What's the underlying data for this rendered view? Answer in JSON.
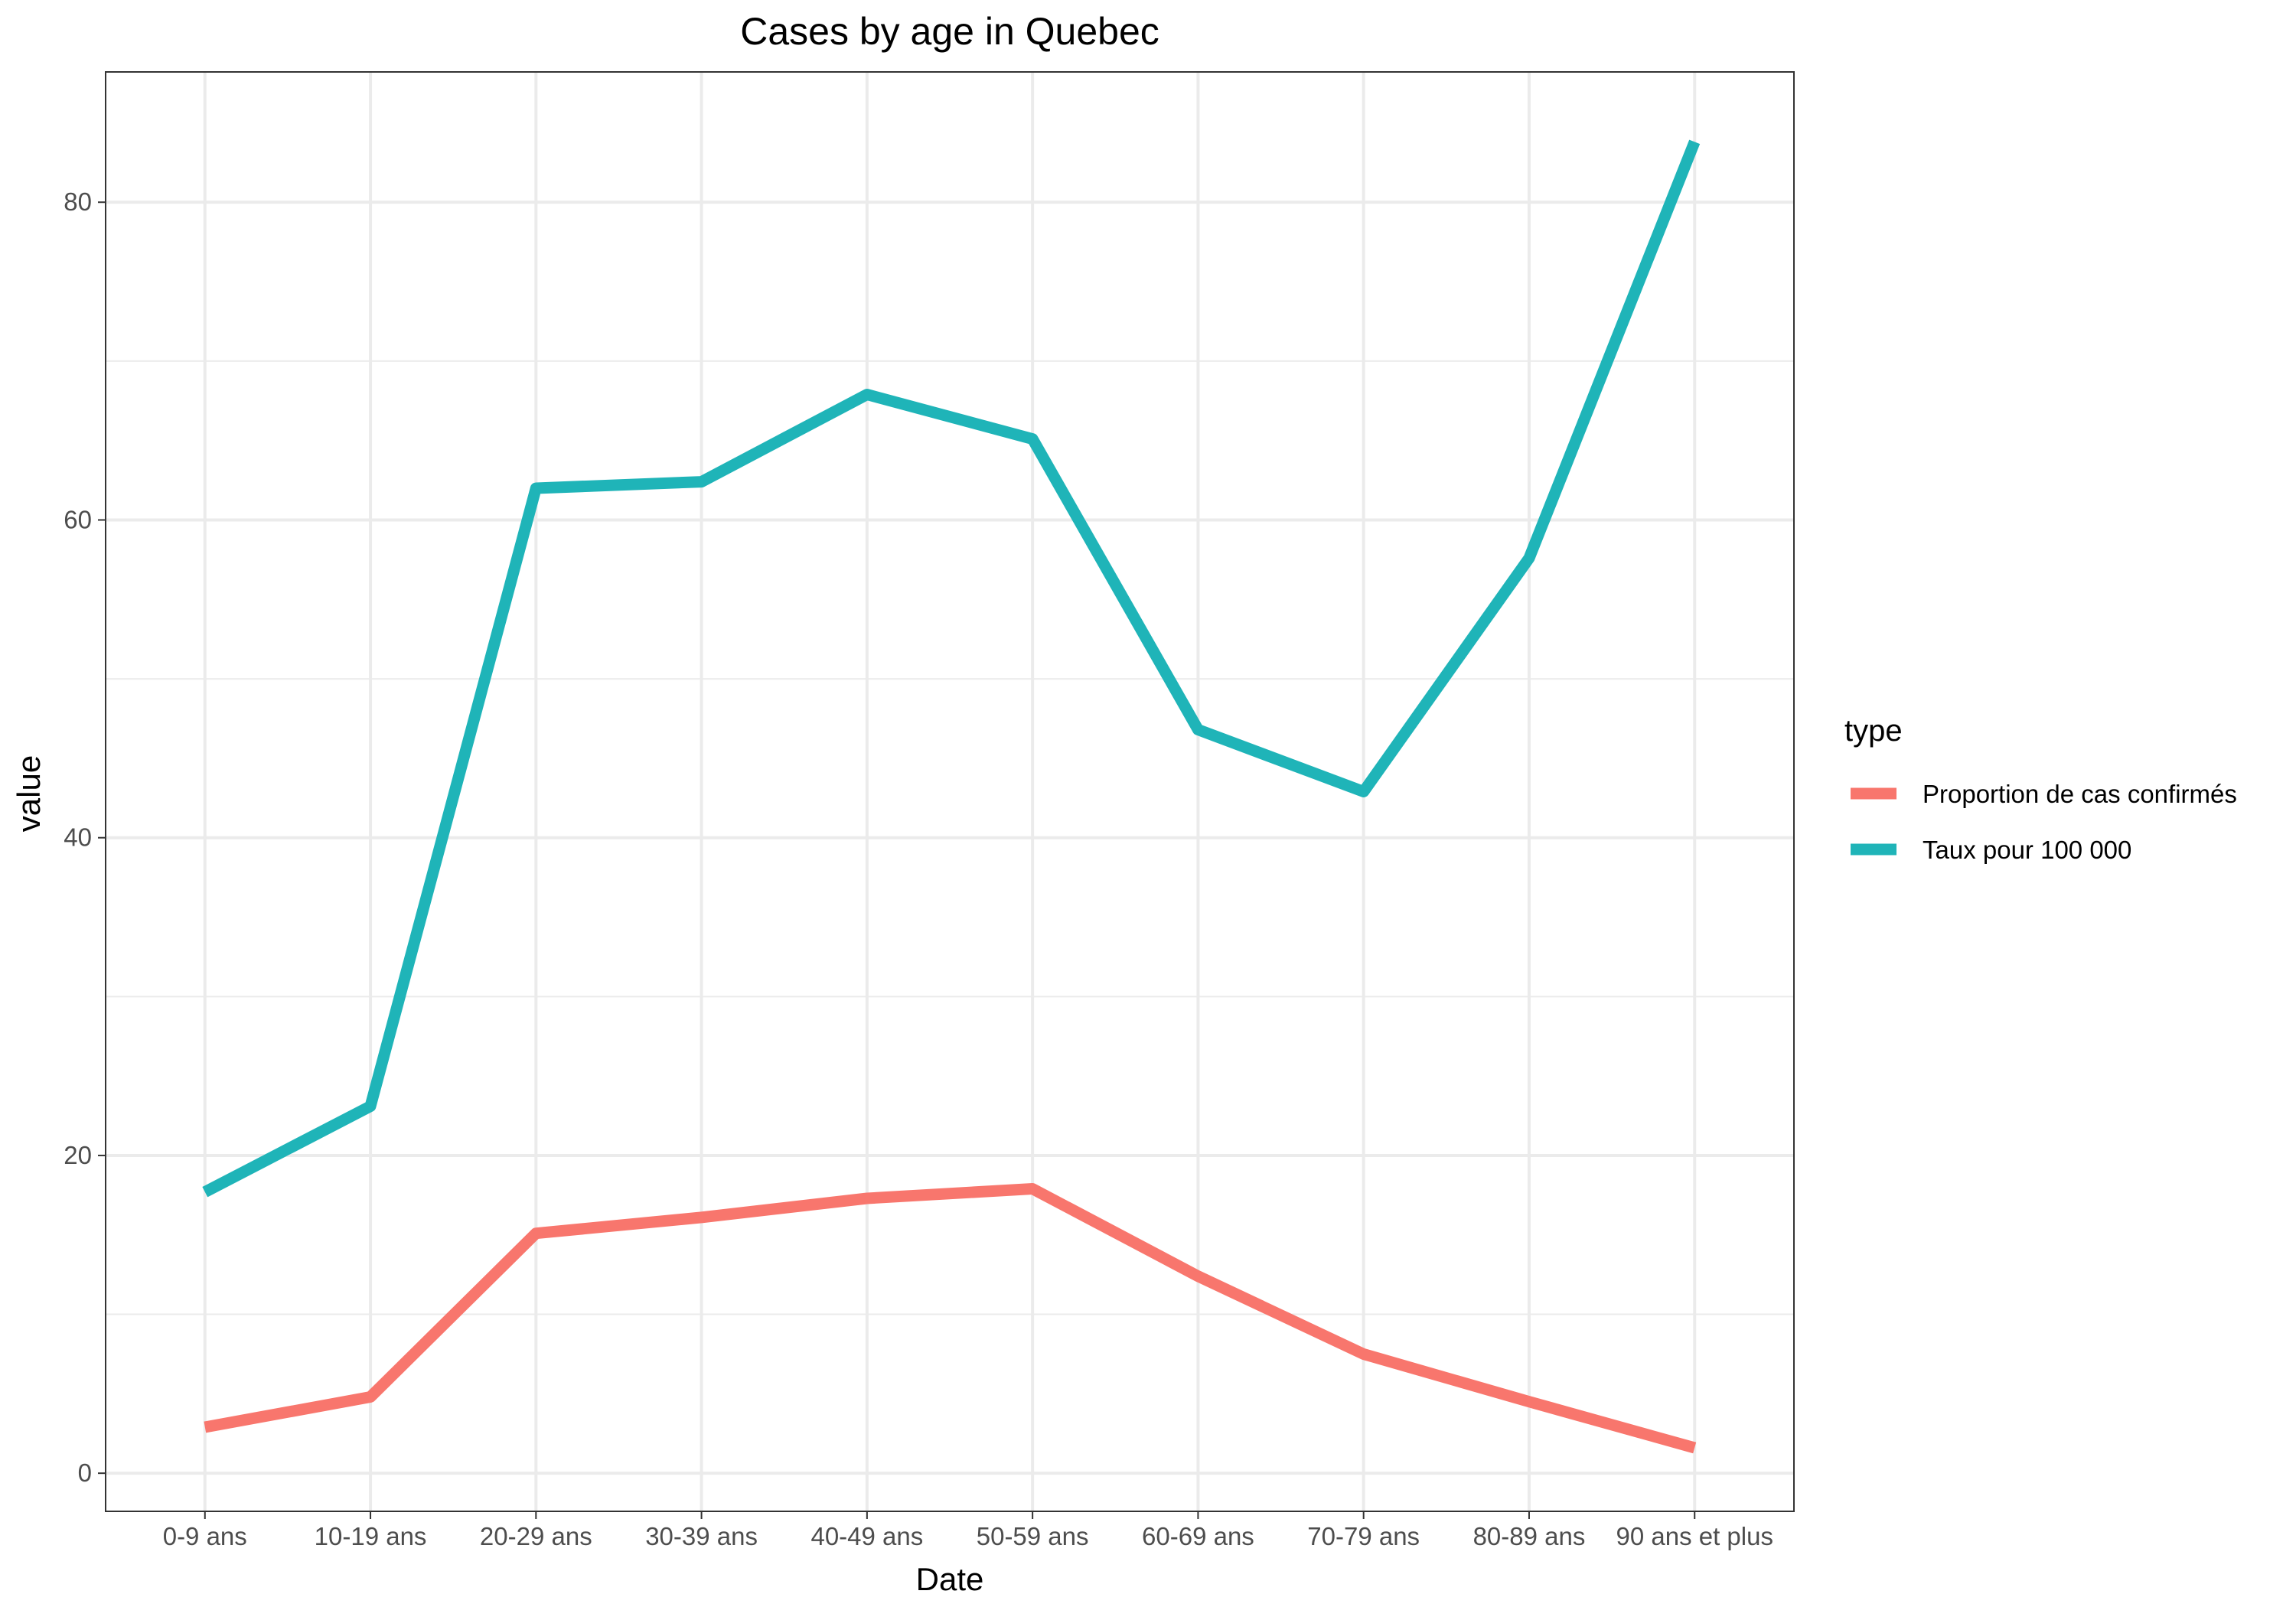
{
  "chart_data": {
    "type": "line",
    "title": "Cases by age in Quebec",
    "xlabel": "Date",
    "ylabel": "value",
    "categories": [
      "0-9 ans",
      "10-19 ans",
      "20-29 ans",
      "30-39 ans",
      "40-49 ans",
      "50-59 ans",
      "60-69 ans",
      "70-79 ans",
      "80-89 ans",
      "90 ans et plus"
    ],
    "ylim": [
      -2.4,
      88.2
    ],
    "y_ticks": [
      0,
      20,
      40,
      60,
      80
    ],
    "grid": true,
    "legend": {
      "title": "type",
      "placement": "right"
    },
    "series": [
      {
        "name": "Proportion de cas confirmés",
        "color": "#F8766D",
        "values": [
          2.9,
          4.8,
          15.1,
          16.1,
          17.3,
          17.9,
          12.4,
          7.5,
          4.5,
          1.6
        ]
      },
      {
        "name": "Taux pour 100 000",
        "color": "#1FB4B8",
        "values": [
          17.7,
          23.1,
          62.0,
          62.4,
          67.9,
          65.1,
          46.8,
          42.9,
          57.6,
          83.8
        ]
      }
    ]
  }
}
